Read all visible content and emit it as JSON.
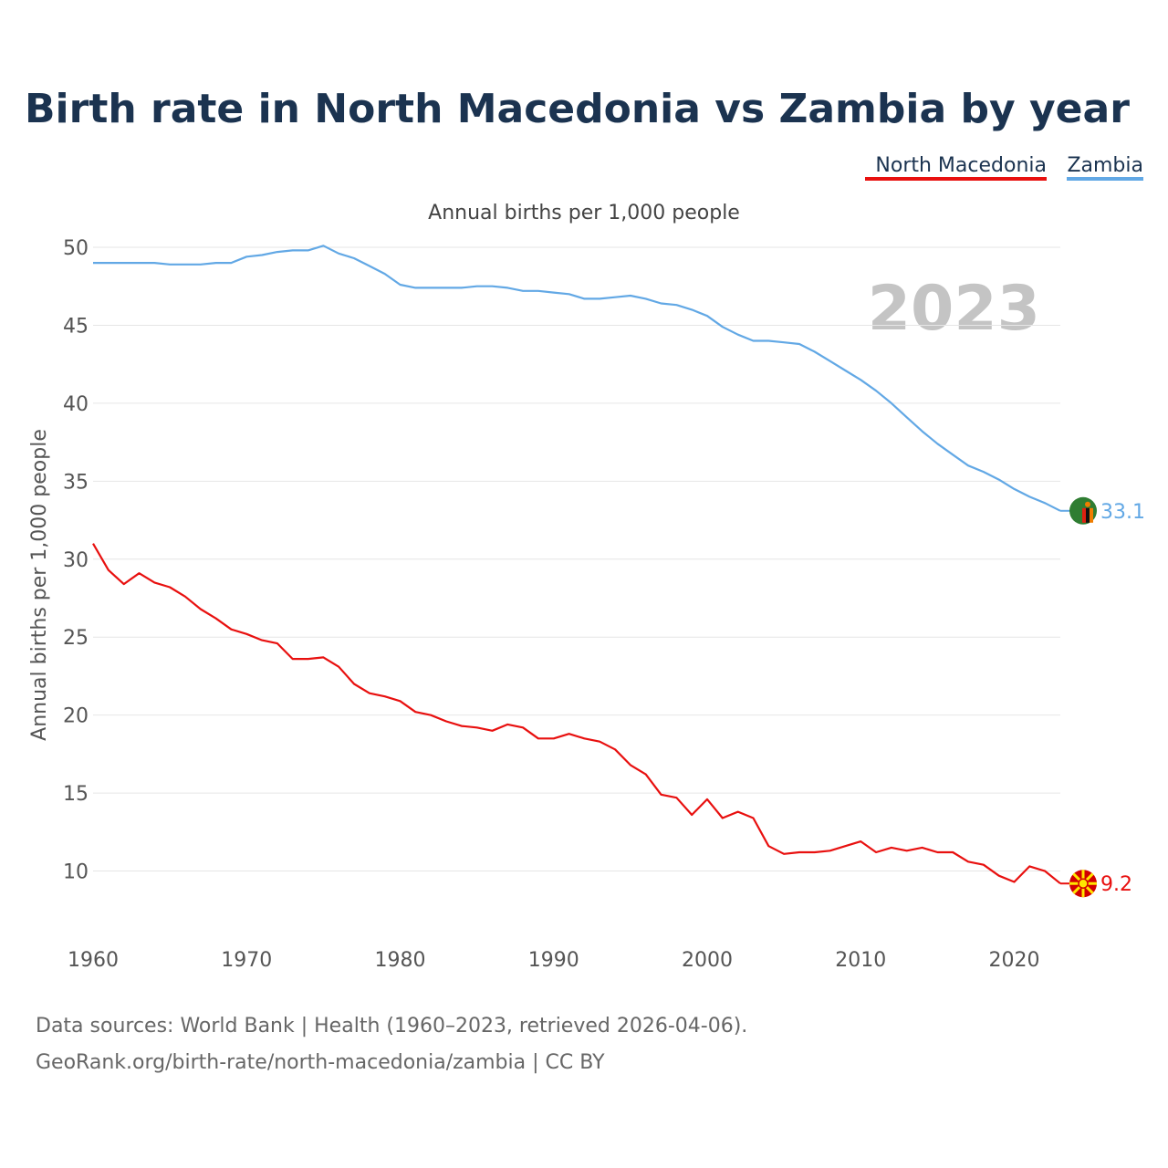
{
  "chart_data": {
    "type": "line",
    "title": "Birth rate in North Macedonia vs Zambia by year",
    "subtitle": "Annual births per 1,000 people",
    "ylabel": "Annual births per 1,000 people",
    "xlabel": "",
    "year_watermark": "2023",
    "xlim": [
      1960,
      2023
    ],
    "ylim": [
      5,
      50
    ],
    "x_ticks": [
      1960,
      1970,
      1980,
      1990,
      2000,
      2010,
      2020
    ],
    "y_ticks": [
      10,
      15,
      20,
      25,
      30,
      35,
      40,
      45,
      50
    ],
    "grid": true,
    "legend_position": "top-right",
    "x": [
      1960,
      1961,
      1962,
      1963,
      1964,
      1965,
      1966,
      1967,
      1968,
      1969,
      1970,
      1971,
      1972,
      1973,
      1974,
      1975,
      1976,
      1977,
      1978,
      1979,
      1980,
      1981,
      1982,
      1983,
      1984,
      1985,
      1986,
      1987,
      1988,
      1989,
      1990,
      1991,
      1992,
      1993,
      1994,
      1995,
      1996,
      1997,
      1998,
      1999,
      2000,
      2001,
      2002,
      2003,
      2004,
      2005,
      2006,
      2007,
      2008,
      2009,
      2010,
      2011,
      2012,
      2013,
      2014,
      2015,
      2016,
      2017,
      2018,
      2019,
      2020,
      2021,
      2022,
      2023
    ],
    "series": [
      {
        "name": "North Macedonia",
        "color": "#e8100f",
        "flag": "north-macedonia-flag-icon",
        "end_label": "9.2",
        "values": [
          31.0,
          29.3,
          28.4,
          29.1,
          28.5,
          28.2,
          27.6,
          26.8,
          26.2,
          25.5,
          25.2,
          24.8,
          24.6,
          23.6,
          23.6,
          23.7,
          23.1,
          22.0,
          21.4,
          21.2,
          20.9,
          20.2,
          20.0,
          19.6,
          19.3,
          19.2,
          19.0,
          19.4,
          19.2,
          18.5,
          18.5,
          18.8,
          18.5,
          18.3,
          17.8,
          16.8,
          16.2,
          14.9,
          14.7,
          13.6,
          14.6,
          13.4,
          13.8,
          13.4,
          11.6,
          11.1,
          11.2,
          11.2,
          11.3,
          11.6,
          11.9,
          11.2,
          11.5,
          11.3,
          11.5,
          11.2,
          11.2,
          10.6,
          10.4,
          9.7,
          9.3,
          10.3,
          10.0,
          9.2
        ]
      },
      {
        "name": "Zambia",
        "color": "#62a8e5",
        "flag": "zambia-flag-icon",
        "end_label": "33.1",
        "values": [
          49.0,
          49.0,
          49.0,
          49.0,
          49.0,
          48.9,
          48.9,
          48.9,
          49.0,
          49.0,
          49.4,
          49.5,
          49.7,
          49.8,
          49.8,
          50.1,
          49.6,
          49.3,
          48.8,
          48.3,
          47.6,
          47.4,
          47.4,
          47.4,
          47.4,
          47.5,
          47.5,
          47.4,
          47.2,
          47.2,
          47.1,
          47.0,
          46.7,
          46.7,
          46.8,
          46.9,
          46.7,
          46.4,
          46.3,
          46.0,
          45.6,
          44.9,
          44.4,
          44.0,
          44.0,
          43.9,
          43.8,
          43.3,
          42.7,
          42.1,
          41.5,
          40.8,
          40.0,
          39.1,
          38.2,
          37.4,
          36.7,
          36.0,
          35.6,
          35.1,
          34.5,
          34.0,
          33.6,
          33.1
        ]
      }
    ]
  },
  "footer": {
    "source_line": "Data sources: World Bank | Health (1960–2023, retrieved 2026-04-06).",
    "url_line": "GeoRank.org/birth-rate/north-macedonia/zambia | CC BY"
  }
}
